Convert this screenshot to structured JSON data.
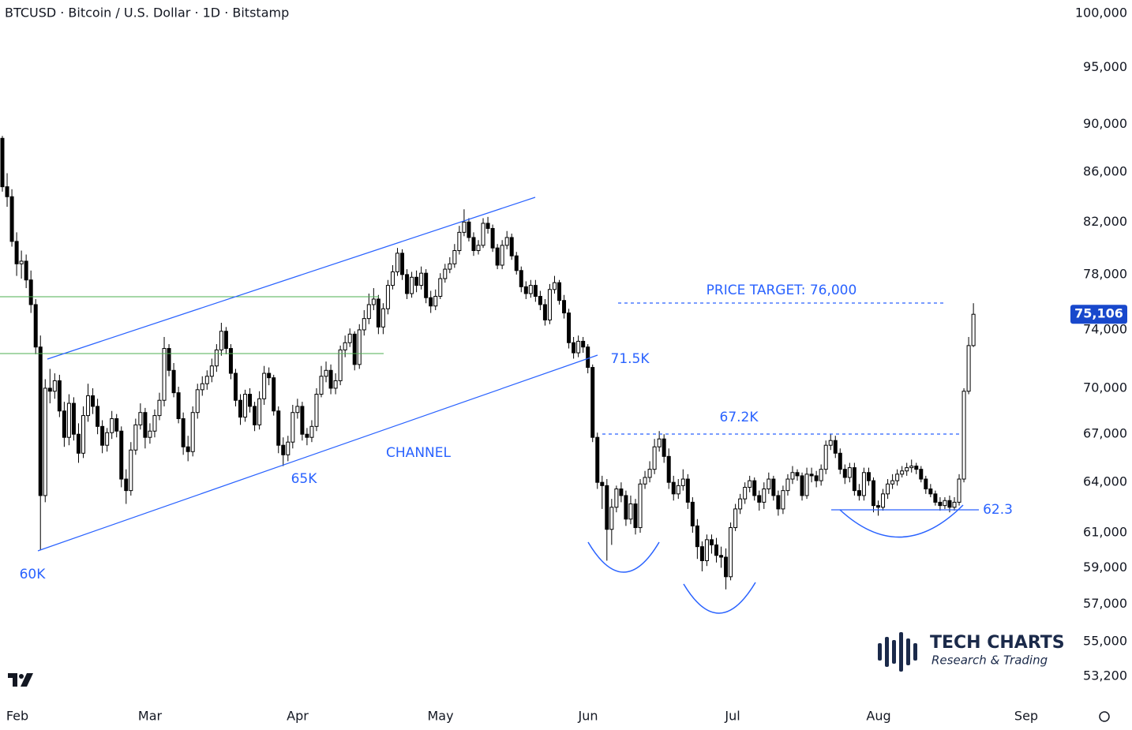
{
  "chart_data": {
    "type": "candlestick",
    "title": "BTCUSD · Bitcoin / U.S. Dollar · 1D · Bitstamp",
    "x_axis_labels": [
      "Feb",
      "Mar",
      "Apr",
      "May",
      "Jun",
      "Jul",
      "Aug",
      "Sep"
    ],
    "log_scale": true,
    "up_color": "#ffffff",
    "down_color": "#000000",
    "edge_color": "#000000",
    "annotation_color": "#2962ff",
    "level_color": "#4caf50",
    "ylim": [
      52100,
      101300
    ],
    "yticks": [
      {
        "value": 100000,
        "label": "100,000"
      },
      {
        "value": 95000,
        "label": "95,000"
      },
      {
        "value": 90000,
        "label": "90,000"
      },
      {
        "value": 86000,
        "label": "86,000"
      },
      {
        "value": 82000,
        "label": "82,000"
      },
      {
        "value": 78000,
        "label": "78,000"
      },
      {
        "value": 74000,
        "label": "74,000"
      },
      {
        "value": 70000,
        "label": "70,000"
      },
      {
        "value": 67000,
        "label": "67,000"
      },
      {
        "value": 64000,
        "label": "64,000"
      },
      {
        "value": 61000,
        "label": "61,000"
      },
      {
        "value": 59000,
        "label": "59,000"
      },
      {
        "value": 57000,
        "label": "57,000"
      },
      {
        "value": 55000,
        "label": "55,000"
      },
      {
        "value": 53200,
        "label": "53,200"
      }
    ],
    "last_price": {
      "value": 75106,
      "label": "75,106"
    },
    "annotations": [
      "PRICE TARGET: 76,000",
      "71.5K",
      "67.2K",
      "CHANNEL",
      "65K",
      "60K",
      "62.3"
    ],
    "logo": {
      "name": "TECH CHARTS",
      "tagline": "Research & Trading"
    },
    "open": [
      88800,
      84800,
      84000,
      80500,
      78800,
      79000,
      77600,
      75800,
      72800,
      63200,
      70000,
      69800,
      70500,
      68500,
      66800,
      69000,
      67000,
      65800,
      68200,
      69500,
      68800,
      67500,
      66300,
      67100,
      68000,
      67200,
      64200,
      63500,
      66000,
      67600,
      68400,
      66800,
      67200,
      68200,
      69200,
      72700,
      71200,
      69700,
      68000,
      66200,
      65900,
      68400,
      69900,
      70300,
      70800,
      71500,
      72600,
      73900,
      72700,
      71000,
      69200,
      68100,
      69600,
      68800,
      67600,
      69300,
      71000,
      70700,
      68500,
      66300,
      65700,
      66500,
      68400,
      68800,
      67000,
      66800,
      67500,
      69600,
      70800,
      71200,
      70000,
      70500,
      72600,
      73100,
      73700,
      71600,
      74000,
      74800,
      75800,
      76200,
      74200,
      75500,
      77200,
      78200,
      79600,
      78000,
      76600,
      77800,
      77200,
      78100,
      76300,
      75700,
      76400,
      77700,
      78400,
      78800,
      79800,
      81200,
      82000,
      80800,
      79800,
      80200,
      81900,
      81500,
      80000,
      78700,
      80200,
      80800,
      79400,
      78300,
      77100,
      76600,
      77200,
      76400,
      75800,
      74700,
      76900,
      77400,
      76100,
      75200,
      73100,
      72400,
      73200,
      72800,
      71400,
      66800,
      64000,
      63800,
      61200,
      62500,
      63600,
      63200,
      61800,
      62700,
      61300,
      63900,
      64300,
      64800,
      66200,
      66700,
      65600,
      64000,
      63300,
      63800,
      64200,
      62800,
      61400,
      60200,
      59400,
      60600,
      60300,
      59700,
      59600,
      58500,
      61300,
      62400,
      63000,
      63700,
      64100,
      63200,
      62800,
      63600,
      64200,
      63200,
      62400,
      63500,
      64200,
      64600,
      64400,
      63200,
      64500,
      64400,
      64100,
      64800,
      66300,
      66600,
      65800,
      64800,
      64300,
      64900,
      63500,
      63200,
      64600,
      64100,
      62600,
      62500,
      63300,
      63900,
      64100,
      64500,
      64700,
      64900,
      65000,
      64800,
      64200,
      63600,
      63300,
      62800,
      62600,
      62900,
      62500,
      62800,
      64200,
      69800,
      72900
    ],
    "close": [
      84800,
      84000,
      80500,
      78800,
      79000,
      77600,
      75800,
      72800,
      63200,
      70000,
      69800,
      70500,
      68500,
      66800,
      69000,
      67000,
      65800,
      68200,
      69500,
      68800,
      67500,
      66300,
      67100,
      68000,
      67200,
      64200,
      63500,
      66000,
      67600,
      68400,
      66800,
      67200,
      68200,
      69200,
      72700,
      71200,
      69700,
      68000,
      66200,
      65900,
      68400,
      69900,
      70300,
      70800,
      71500,
      72600,
      73900,
      72700,
      71000,
      69200,
      68100,
      69600,
      68800,
      67600,
      69300,
      71000,
      70700,
      68500,
      66300,
      65700,
      66500,
      68400,
      68800,
      67000,
      66800,
      67500,
      69600,
      70800,
      71200,
      70000,
      70500,
      72600,
      73100,
      73700,
      71600,
      74000,
      74800,
      75800,
      76200,
      74200,
      75500,
      77200,
      78200,
      79600,
      78000,
      76600,
      77800,
      77200,
      78100,
      76300,
      75700,
      76400,
      77700,
      78400,
      78800,
      79800,
      81200,
      82000,
      80800,
      79800,
      80200,
      81900,
      81500,
      80000,
      78700,
      80200,
      80800,
      79400,
      78300,
      77100,
      76600,
      77200,
      76400,
      75800,
      74700,
      76900,
      77400,
      76100,
      75200,
      73100,
      72400,
      73200,
      72800,
      71400,
      66800,
      64000,
      63800,
      61200,
      62500,
      63600,
      63200,
      61800,
      62700,
      61300,
      63900,
      64300,
      64800,
      66200,
      66700,
      65600,
      64000,
      63300,
      63800,
      64200,
      62800,
      61400,
      60200,
      59400,
      60600,
      60300,
      59700,
      59600,
      58500,
      61300,
      62400,
      63000,
      63700,
      64100,
      63200,
      62800,
      63600,
      64200,
      63200,
      62400,
      63500,
      64200,
      64600,
      64400,
      63200,
      64500,
      64400,
      64100,
      64800,
      66300,
      66600,
      65800,
      64800,
      64300,
      64900,
      63500,
      63200,
      64600,
      64100,
      62600,
      62500,
      63300,
      63900,
      64100,
      64500,
      64700,
      64900,
      65000,
      64800,
      64200,
      63600,
      63300,
      62800,
      62600,
      62900,
      62500,
      62800,
      64200,
      69800,
      72900,
      75106
    ],
    "high": [
      89000,
      85900,
      84600,
      81200,
      79800,
      79500,
      78300,
      76200,
      73600,
      70600,
      71300,
      71000,
      70900,
      69100,
      69600,
      69400,
      67700,
      68800,
      70300,
      70000,
      69300,
      67900,
      67400,
      68500,
      68300,
      67500,
      64800,
      66500,
      68000,
      69000,
      68700,
      67700,
      68600,
      69700,
      73500,
      73000,
      71700,
      70100,
      68400,
      66900,
      68800,
      70300,
      70800,
      71200,
      72000,
      73000,
      74500,
      74200,
      73000,
      71300,
      69600,
      69900,
      70000,
      69100,
      69800,
      71500,
      71400,
      70900,
      68800,
      66800,
      66900,
      68900,
      69300,
      69100,
      67400,
      67900,
      70000,
      71500,
      71800,
      71600,
      71000,
      72900,
      73600,
      74100,
      73900,
      74400,
      75400,
      76600,
      77000,
      76500,
      75900,
      77600,
      78700,
      80000,
      79900,
      78400,
      78200,
      78300,
      78600,
      78400,
      76800,
      76900,
      78100,
      78800,
      79300,
      80300,
      81700,
      83000,
      82300,
      81200,
      80600,
      82300,
      82400,
      81800,
      80300,
      80600,
      81300,
      81100,
      79700,
      78600,
      77500,
      77600,
      77600,
      76800,
      76200,
      77300,
      77900,
      77600,
      76500,
      75500,
      73500,
      73600,
      73500,
      73000,
      71600,
      67100,
      64400,
      64200,
      63000,
      63800,
      64000,
      63500,
      63200,
      63000,
      64200,
      64700,
      65300,
      66700,
      67200,
      67000,
      66100,
      64400,
      64200,
      64800,
      64500,
      63100,
      61800,
      60500,
      60900,
      60900,
      60700,
      60200,
      60100,
      61600,
      62700,
      63300,
      64000,
      64400,
      64300,
      63500,
      64000,
      64600,
      64400,
      63500,
      63800,
      64500,
      65000,
      64800,
      64600,
      64900,
      64900,
      64700,
      65100,
      66600,
      67000,
      66900,
      66100,
      65100,
      65200,
      65200,
      63900,
      64900,
      64900,
      64300,
      62900,
      63600,
      64200,
      64500,
      64800,
      65000,
      65200,
      65400,
      65200,
      65000,
      64400,
      63900,
      63500,
      63100,
      63100,
      63200,
      63100,
      64500,
      70000,
      73500,
      75900
    ],
    "low": [
      84400,
      83200,
      80100,
      77900,
      77700,
      77000,
      75200,
      72300,
      60000,
      62800,
      69000,
      69300,
      68100,
      66200,
      66300,
      66600,
      65200,
      65500,
      67800,
      68300,
      67000,
      65800,
      65900,
      66700,
      66800,
      63700,
      62700,
      63200,
      65700,
      67300,
      66100,
      66400,
      66800,
      67900,
      68800,
      70800,
      69400,
      67700,
      65700,
      65300,
      65600,
      68000,
      69500,
      69900,
      70400,
      71100,
      72200,
      72300,
      70600,
      68800,
      67600,
      67800,
      68400,
      67200,
      67300,
      68900,
      70200,
      68200,
      65800,
      65000,
      65300,
      66100,
      68000,
      66600,
      66300,
      66500,
      67200,
      69400,
      70400,
      69600,
      69600,
      70200,
      72100,
      72800,
      71200,
      71300,
      73600,
      74400,
      75400,
      73700,
      73700,
      75100,
      76900,
      77900,
      77600,
      76200,
      76300,
      76700,
      76900,
      75900,
      75200,
      75400,
      76200,
      77400,
      78100,
      78500,
      79500,
      80900,
      80500,
      79400,
      79500,
      80000,
      81100,
      79700,
      78400,
      78400,
      79900,
      79100,
      78000,
      76700,
      76200,
      76300,
      76000,
      75400,
      74300,
      74400,
      76600,
      75800,
      74800,
      72700,
      72000,
      72100,
      72400,
      71000,
      66500,
      63600,
      62400,
      59400,
      60300,
      62200,
      62800,
      61400,
      61500,
      60900,
      61000,
      63600,
      64000,
      64500,
      65900,
      65200,
      63600,
      62900,
      63000,
      63500,
      62400,
      61000,
      59500,
      58800,
      59100,
      59800,
      59300,
      59000,
      57800,
      58300,
      61100,
      62100,
      62700,
      63400,
      62900,
      62300,
      62400,
      63300,
      62900,
      62000,
      62100,
      63200,
      63900,
      64100,
      62900,
      63000,
      64000,
      63700,
      63800,
      64500,
      66000,
      65500,
      64500,
      63900,
      64000,
      63200,
      62900,
      62900,
      63800,
      62200,
      62000,
      62300,
      63000,
      63600,
      63800,
      64300,
      64400,
      64600,
      64500,
      64000,
      63300,
      63100,
      62600,
      62300,
      62400,
      62200,
      62300,
      62600,
      64000,
      69600,
      72800
    ]
  }
}
